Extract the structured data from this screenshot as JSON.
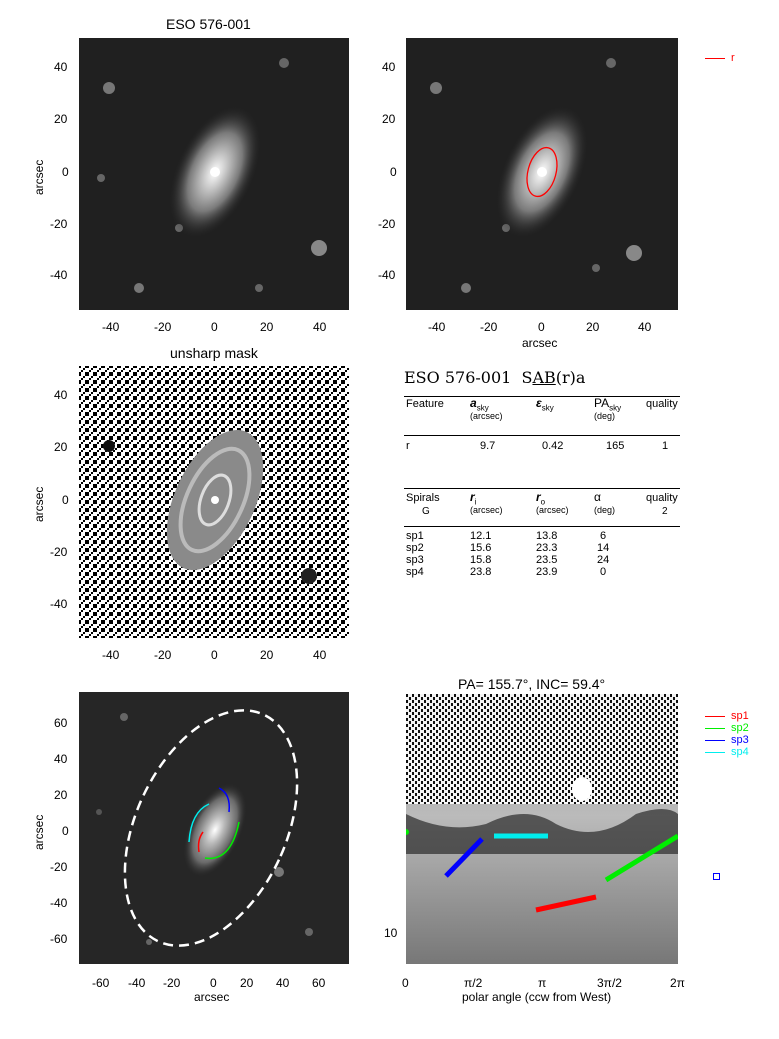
{
  "panel_top_left": {
    "title": "ESO 576-001",
    "ylabel": "arcsec",
    "yticks": [
      "40",
      "20",
      "0",
      "-20",
      "-40"
    ],
    "xticks": [
      "-40",
      "-20",
      "0",
      "20",
      "40"
    ]
  },
  "panel_top_right": {
    "xlabel": "arcsec",
    "yticks": [
      "40",
      "20",
      "0",
      "-20",
      "-40"
    ],
    "xticks": [
      "-40",
      "-20",
      "0",
      "20",
      "40"
    ],
    "legend": {
      "label": "r",
      "color": "#ff0000"
    }
  },
  "panel_mid_left": {
    "title": "unsharp mask",
    "ylabel": "arcsec",
    "yticks": [
      "40",
      "20",
      "0",
      "-20",
      "-40"
    ],
    "xticks": [
      "-40",
      "-20",
      "0",
      "20",
      "40"
    ]
  },
  "classification": {
    "name": "ESO 576-001",
    "type_prefix": "S",
    "type_bar": "AB",
    "type_suffix": "(r)a"
  },
  "feature_table": {
    "headers": [
      "Feature",
      "a",
      "sky",
      "(arcsec)",
      "ε",
      "sky",
      "PA",
      "sky",
      "(deg)",
      "quality"
    ],
    "rows": [
      [
        "r",
        "9.7",
        "0.42",
        "165",
        "1"
      ]
    ]
  },
  "spiral_table": {
    "head1": "Spirals",
    "head1b": "G",
    "ri": "r",
    "ri_sub": "i",
    "ro": "r",
    "ro_sub": "o",
    "alpha": "α",
    "quality": "quality",
    "quality_val": "2",
    "units": [
      "(arcsec)",
      "(arcsec)",
      "(deg)"
    ],
    "rows": [
      [
        "sp1",
        "12.1",
        "13.8",
        "6"
      ],
      [
        "sp2",
        "15.6",
        "23.3",
        "14"
      ],
      [
        "sp3",
        "15.8",
        "23.5",
        "24"
      ],
      [
        "sp4",
        "23.8",
        "23.9",
        "0"
      ]
    ]
  },
  "panel_bot_left": {
    "xlabel": "arcsec",
    "ylabel": "arcsec",
    "yticks": [
      "60",
      "40",
      "20",
      "0",
      "-20",
      "-40",
      "-60"
    ],
    "xticks": [
      "-60",
      "-40",
      "-20",
      "0",
      "20",
      "40",
      "60"
    ]
  },
  "panel_bot_right": {
    "title": "PA= 155.7°, INC=  59.4°",
    "xlabel": "polar angle (ccw from West)",
    "xticks": [
      "0",
      "π/2",
      "π",
      "3π/2",
      "2π"
    ],
    "ytick": "10",
    "legend": [
      {
        "label": "sp1",
        "color": "#ff0000"
      },
      {
        "label": "sp2",
        "color": "#00ee00"
      },
      {
        "label": "sp3",
        "color": "#0000ff"
      },
      {
        "label": "sp4",
        "color": "#00eeee"
      }
    ]
  }
}
